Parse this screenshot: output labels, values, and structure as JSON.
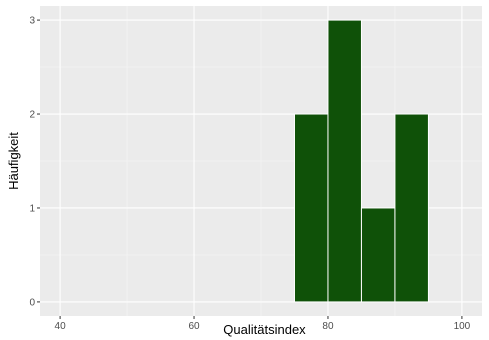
{
  "chart_data": {
    "type": "bar",
    "subtype": "histogram",
    "title": "",
    "xlabel": "Qualitätsindex",
    "ylabel": "Häufigkeit",
    "xlim": [
      37,
      103
    ],
    "ylim": [
      -0.15,
      3.15
    ],
    "x_ticks": [
      40,
      60,
      80,
      100
    ],
    "x_minor_ticks": [
      50,
      70,
      90
    ],
    "y_ticks": [
      0,
      1,
      2,
      3
    ],
    "grid": true,
    "bins": [
      {
        "x0": 75,
        "x1": 80,
        "count": 2
      },
      {
        "x0": 80,
        "x1": 85,
        "count": 3
      },
      {
        "x0": 85,
        "x1": 90,
        "count": 1
      },
      {
        "x0": 90,
        "x1": 95,
        "count": 2
      }
    ],
    "colors": {
      "bar_fill": "#0f5108",
      "bar_stroke": "#ffffff",
      "panel_background": "#ebebeb",
      "grid_major": "#ffffff",
      "grid_minor": "#f5f5f5",
      "tick_text": "#4d4d4d",
      "tick_mark": "#333333"
    }
  }
}
